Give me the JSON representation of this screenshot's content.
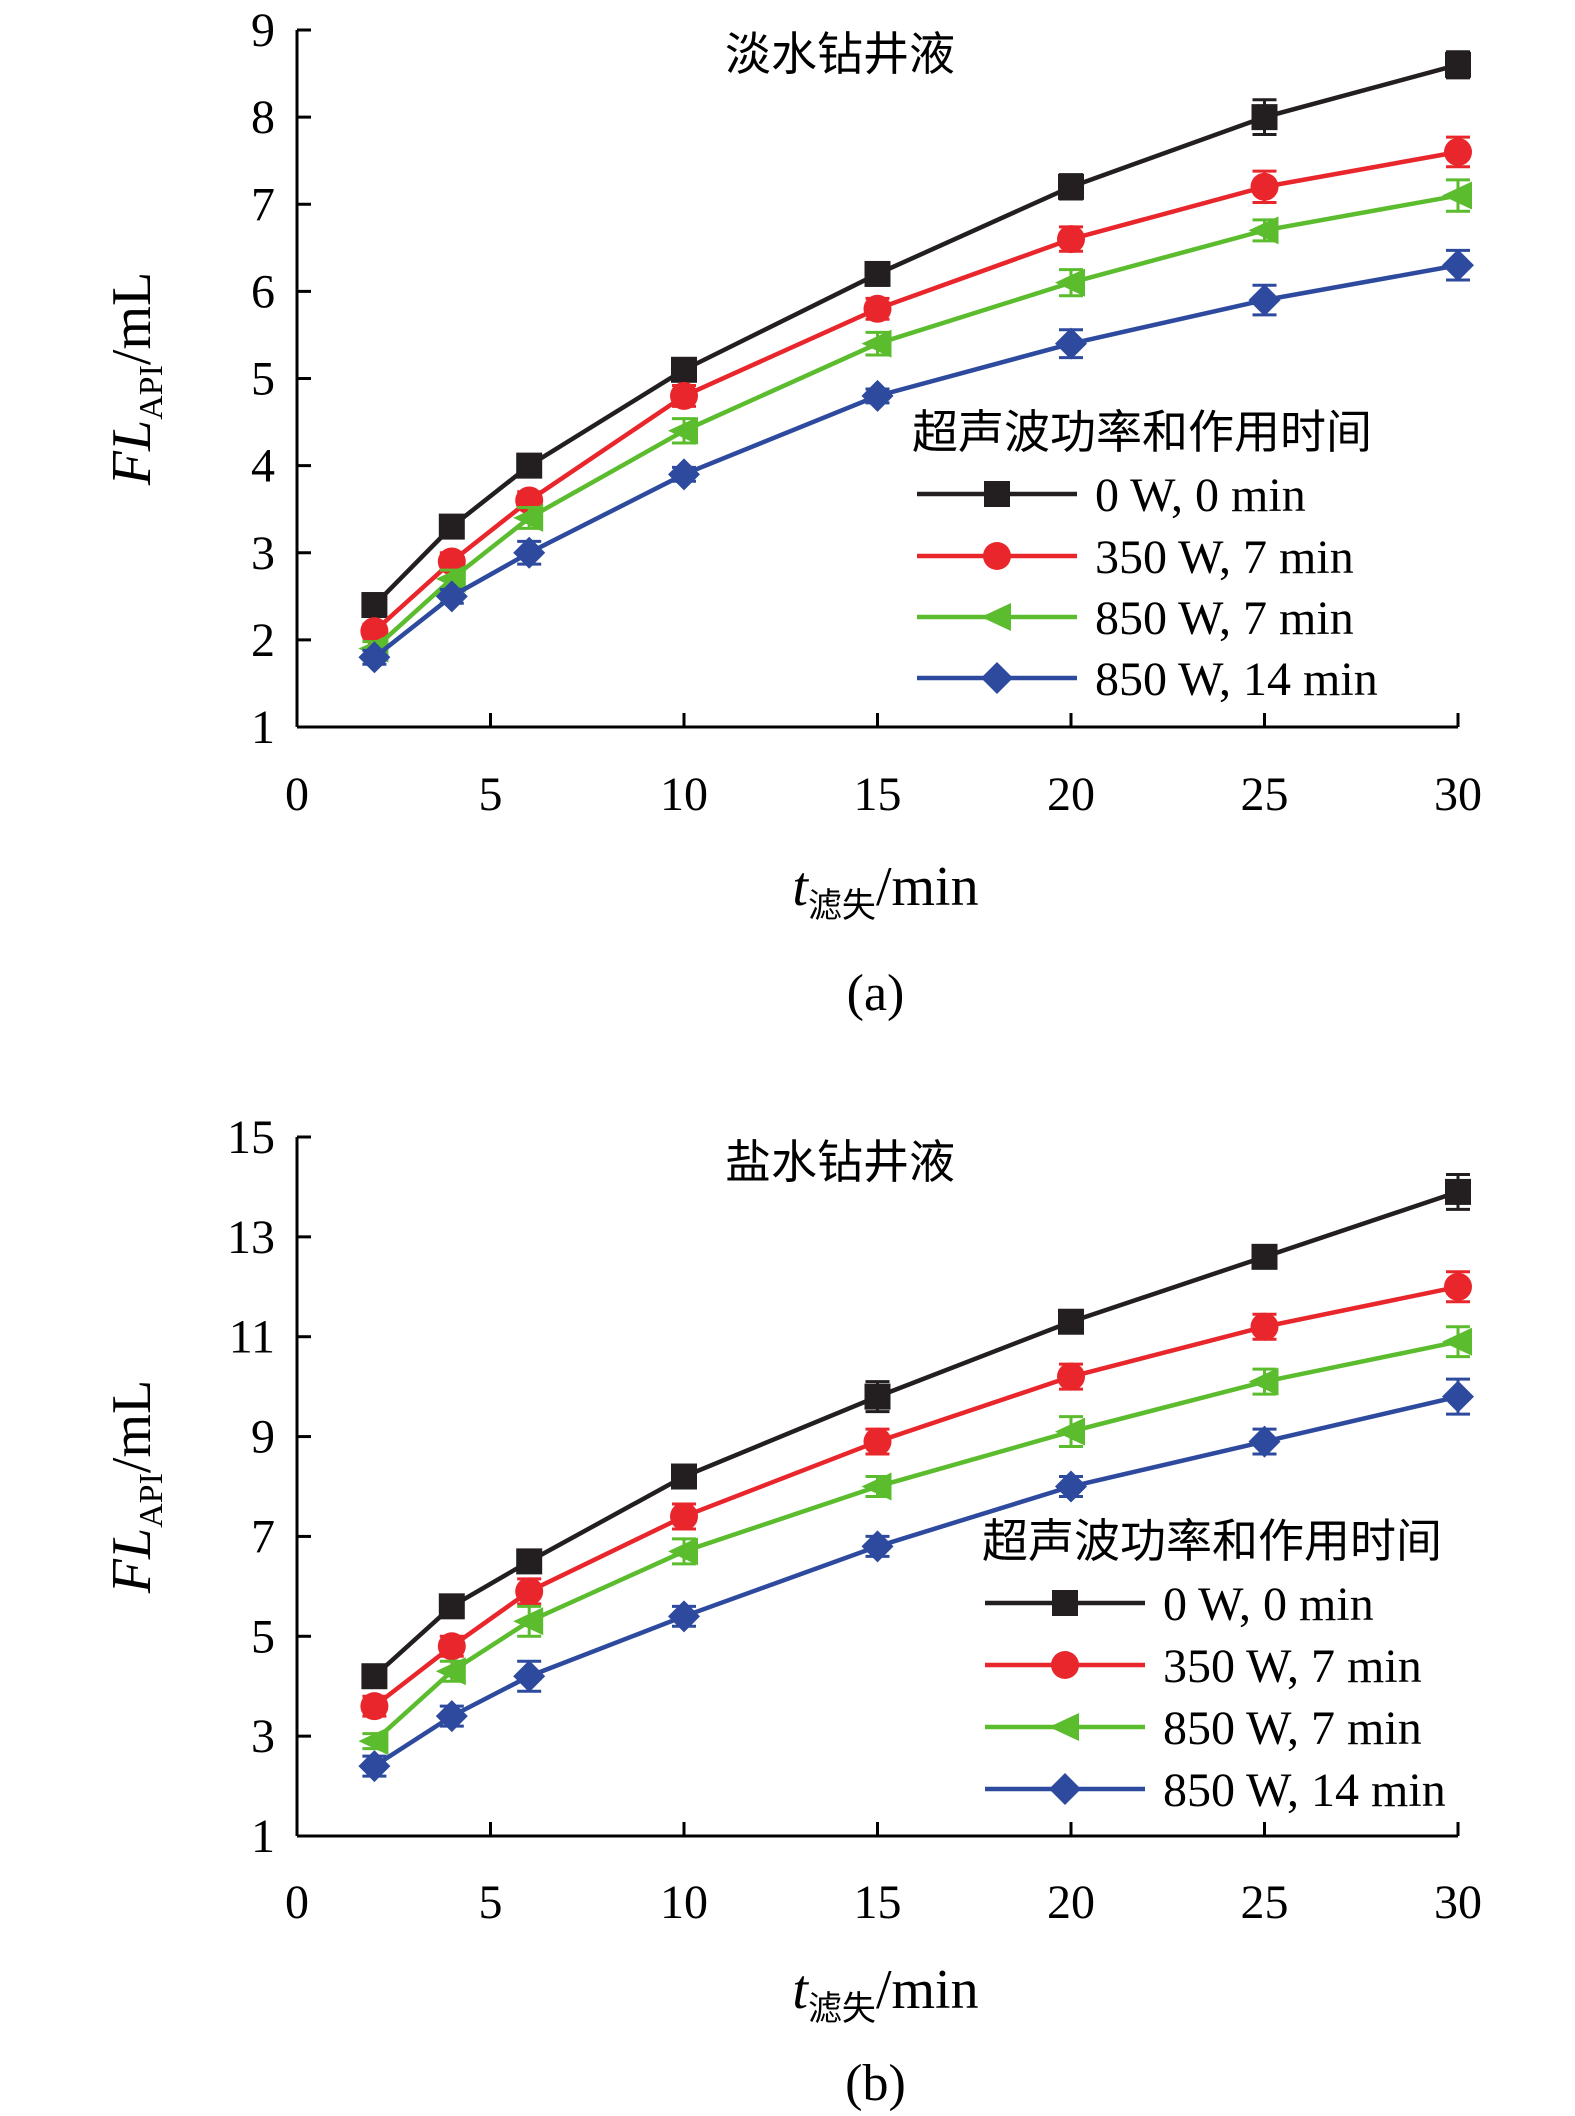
{
  "chart_data": [
    {
      "type": "line",
      "title": "淡水钻井液",
      "panel_label": "(a)",
      "ylabel": {
        "main": "FL",
        "sub": "API",
        "unit": "/mL"
      },
      "xlabel": {
        "main": "t",
        "sub": "滤失",
        "unit": "/min"
      },
      "xlim": [
        0,
        30
      ],
      "ylim": [
        1,
        9
      ],
      "xticks": [
        0,
        5,
        10,
        15,
        20,
        25,
        30
      ],
      "yticks": [
        1,
        2,
        3,
        4,
        5,
        6,
        7,
        8,
        9
      ],
      "x": [
        2,
        4,
        6,
        10,
        15,
        20,
        25,
        30
      ],
      "legend_title": "超声波功率和作用时间",
      "legend_position": "center-right",
      "grid": false,
      "series": [
        {
          "name": "0 W, 0 min",
          "color": "#231f20",
          "marker": "square",
          "values": [
            2.4,
            3.3,
            4.0,
            5.1,
            6.2,
            7.2,
            8.0,
            8.6
          ],
          "errors": [
            0.08,
            0.12,
            0.12,
            0.12,
            0.12,
            0.14,
            0.2,
            0.15
          ]
        },
        {
          "name": "350 W, 7 min",
          "color": "#e8262b",
          "marker": "circle",
          "values": [
            2.1,
            2.9,
            3.6,
            4.8,
            5.8,
            6.6,
            7.2,
            7.6
          ],
          "errors": [
            0.08,
            0.1,
            0.1,
            0.12,
            0.12,
            0.14,
            0.18,
            0.17
          ]
        },
        {
          "name": "850 W, 7 min",
          "color": "#5bbc2e",
          "marker": "triangle-left",
          "values": [
            1.9,
            2.7,
            3.4,
            4.4,
            5.4,
            6.1,
            6.7,
            7.1
          ],
          "errors": [
            0.08,
            0.1,
            0.12,
            0.14,
            0.13,
            0.15,
            0.12,
            0.18
          ]
        },
        {
          "name": "850 W, 14 min",
          "color": "#2d4a9e",
          "marker": "diamond",
          "values": [
            1.8,
            2.5,
            3.0,
            3.9,
            4.8,
            5.4,
            5.9,
            6.3
          ],
          "errors": [
            0.08,
            0.08,
            0.13,
            0.08,
            0.08,
            0.16,
            0.17,
            0.17
          ]
        }
      ]
    },
    {
      "type": "line",
      "title": "盐水钻井液",
      "panel_label": "(b)",
      "ylabel": {
        "main": "FL",
        "sub": "API",
        "unit": "/mL"
      },
      "xlabel": {
        "main": "t",
        "sub": "滤失",
        "unit": "/min"
      },
      "xlim": [
        0,
        30
      ],
      "ylim": [
        1,
        15
      ],
      "xticks": [
        0,
        5,
        10,
        15,
        20,
        25,
        30
      ],
      "yticks": [
        1,
        3,
        5,
        7,
        9,
        11,
        13,
        15
      ],
      "x": [
        2,
        4,
        6,
        10,
        15,
        20,
        25,
        30
      ],
      "legend_title": "超声波功率和作用时间",
      "legend_position": "center-right",
      "grid": false,
      "series": [
        {
          "name": "0 W, 0 min",
          "color": "#231f20",
          "marker": "square",
          "values": [
            4.2,
            5.6,
            6.5,
            8.2,
            9.8,
            11.3,
            12.6,
            13.9
          ],
          "errors": [
            0.15,
            0.2,
            0.2,
            0.2,
            0.3,
            0.2,
            0.2,
            0.35
          ]
        },
        {
          "name": "350 W, 7 min",
          "color": "#e8262b",
          "marker": "circle",
          "values": [
            3.6,
            4.8,
            5.9,
            7.4,
            8.9,
            10.2,
            11.2,
            12.0
          ],
          "errors": [
            0.2,
            0.2,
            0.25,
            0.25,
            0.25,
            0.25,
            0.25,
            0.3
          ]
        },
        {
          "name": "850 W, 7 min",
          "color": "#5bbc2e",
          "marker": "triangle-left",
          "values": [
            2.9,
            4.3,
            5.3,
            6.7,
            8.0,
            9.1,
            10.1,
            10.9
          ],
          "errors": [
            0.15,
            0.2,
            0.3,
            0.25,
            0.2,
            0.3,
            0.25,
            0.3
          ]
        },
        {
          "name": "850 W, 14 min",
          "color": "#2d4a9e",
          "marker": "diamond",
          "values": [
            2.4,
            3.4,
            4.2,
            5.4,
            6.8,
            8.0,
            8.9,
            9.8
          ],
          "errors": [
            0.2,
            0.2,
            0.3,
            0.2,
            0.2,
            0.2,
            0.25,
            0.35
          ]
        }
      ]
    }
  ]
}
